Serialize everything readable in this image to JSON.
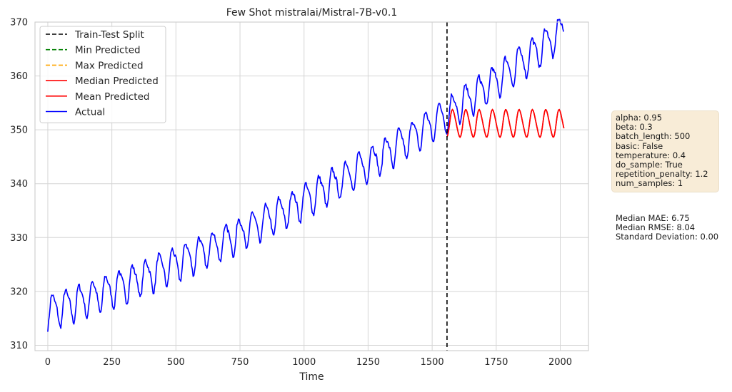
{
  "chart_data": {
    "type": "line",
    "title": "Few Shot mistralai/Mistral-7B-v0.1",
    "xlabel": "Time",
    "ylabel": "",
    "xlim": [
      -50,
      2110
    ],
    "ylim": [
      309,
      370
    ],
    "xticks": [
      0,
      250,
      500,
      750,
      1000,
      1250,
      1500,
      1750,
      2000
    ],
    "yticks": [
      310,
      320,
      330,
      340,
      350,
      360,
      370
    ],
    "grid": true,
    "legend_position": "top-left",
    "split_x": 1558,
    "actual_model": {
      "start_x": 0,
      "end_x": 2015,
      "step": 3,
      "base": 316.2,
      "trend_linear": 0.0155,
      "trend_quadratic": 5.2e-06,
      "period": 52,
      "amplitude": 3.0,
      "phase_offset": 8
    },
    "predicted_model": {
      "start_x": 1558,
      "end_x": 2015,
      "step": 3,
      "center": 351.2,
      "period": 52,
      "amplitude": 2.5,
      "phase_offset": 8
    },
    "series": [
      {
        "name": "Train-Test Split",
        "color": "#000000",
        "style": "dashed"
      },
      {
        "name": "Min Predicted",
        "color": "#008000",
        "style": "dashed"
      },
      {
        "name": "Max Predicted",
        "color": "#ffa500",
        "style": "dashed"
      },
      {
        "name": "Median Predicted",
        "color": "#ff0000",
        "style": "solid"
      },
      {
        "name": "Mean Predicted",
        "color": "#ff0000",
        "style": "solid"
      },
      {
        "name": "Actual",
        "color": "#0000ff",
        "style": "solid"
      }
    ]
  },
  "params": [
    "alpha: 0.95",
    "beta: 0.3",
    "batch_length: 500",
    "basic: False",
    "temperature: 0.4",
    "do_sample: True",
    "repetition_penalty: 1.2",
    "num_samples: 1"
  ],
  "metrics": [
    "Median MAE: 6.75",
    "Median RMSE: 8.04",
    "Standard Deviation: 0.00"
  ]
}
